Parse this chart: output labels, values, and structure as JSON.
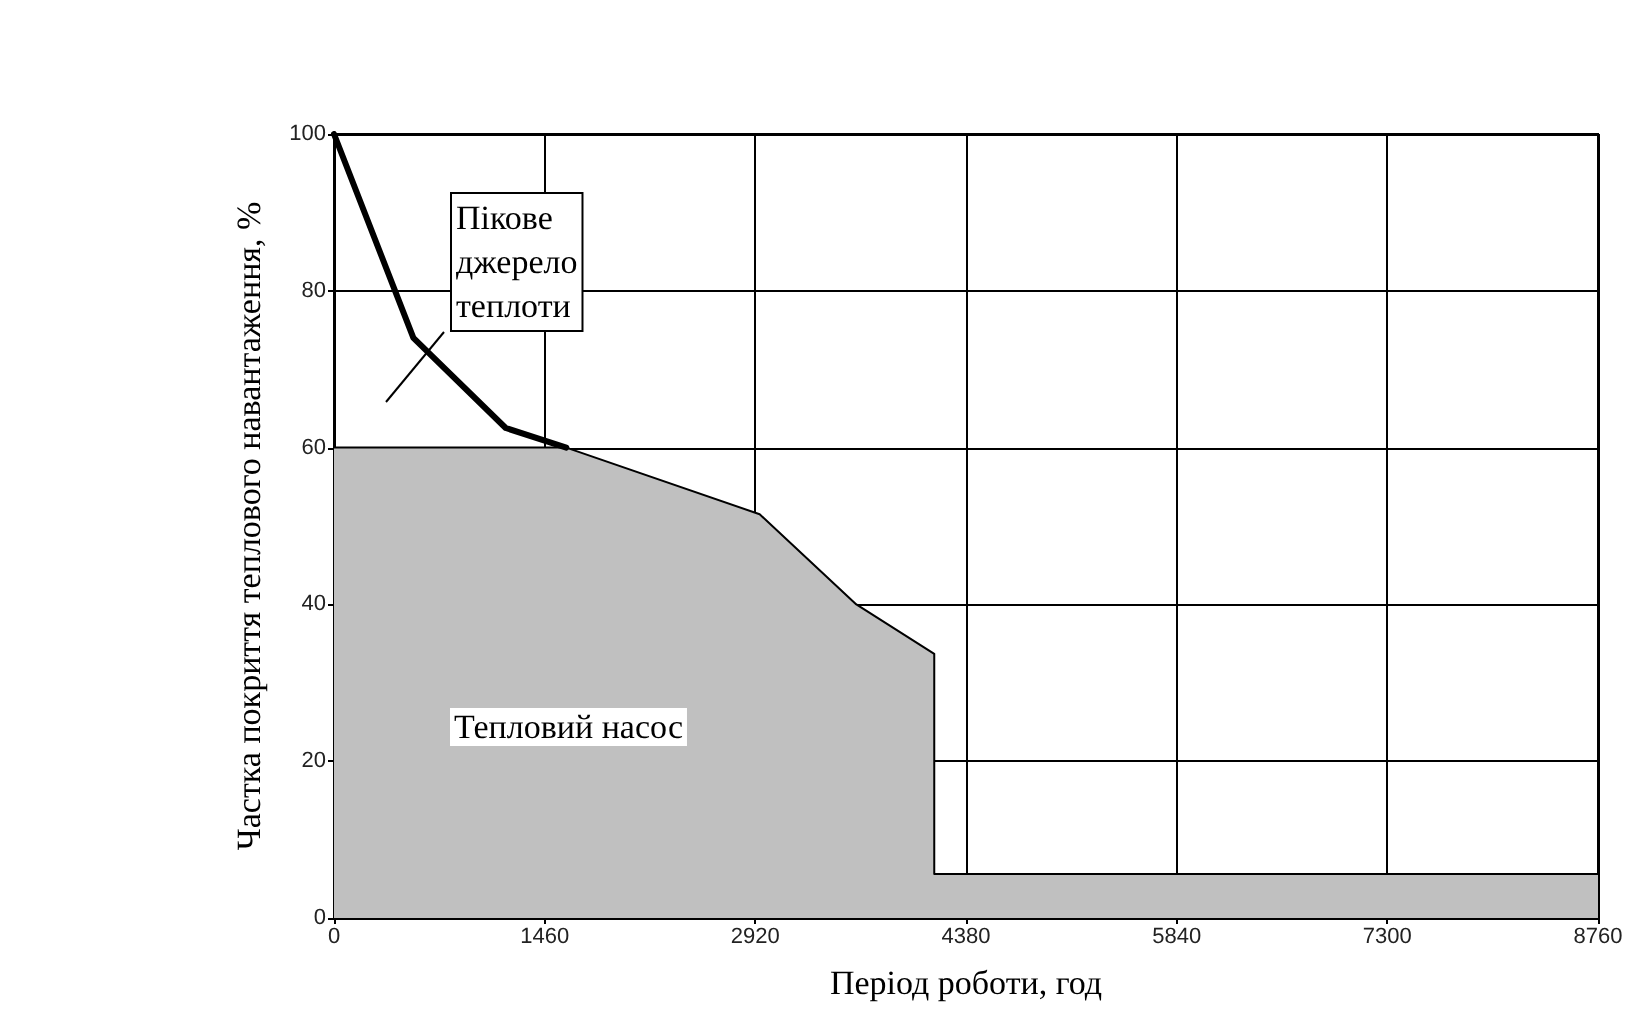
{
  "chart_data": {
    "type": "line",
    "xlabel": "Період роботи, год",
    "ylabel": "Частка покриття теплового навантаження, %",
    "series": [
      {
        "name": "Пікове джерело теплоти",
        "color": "#000000",
        "x": [
          0,
          550,
          1190,
          1610
        ],
        "values": [
          100,
          74,
          62.5,
          60
        ]
      },
      {
        "name": "Тепловий насос",
        "type": "area",
        "color": "#c0c0c0",
        "x": [
          0,
          1610,
          2950,
          3620,
          4160,
          4160,
          8760
        ],
        "values": [
          60,
          60,
          51.5,
          40,
          33.7,
          5.6,
          5.6
        ]
      }
    ],
    "xlim": [
      0,
      8760
    ],
    "xticks": [
      0,
      1460,
      2920,
      4380,
      5840,
      7300,
      8760
    ],
    "ylim": [
      0,
      100
    ],
    "yticks": [
      0,
      20,
      40,
      60,
      80,
      100
    ],
    "grid": true,
    "legend": false,
    "marker": "none",
    "line_style": "solid"
  }
}
